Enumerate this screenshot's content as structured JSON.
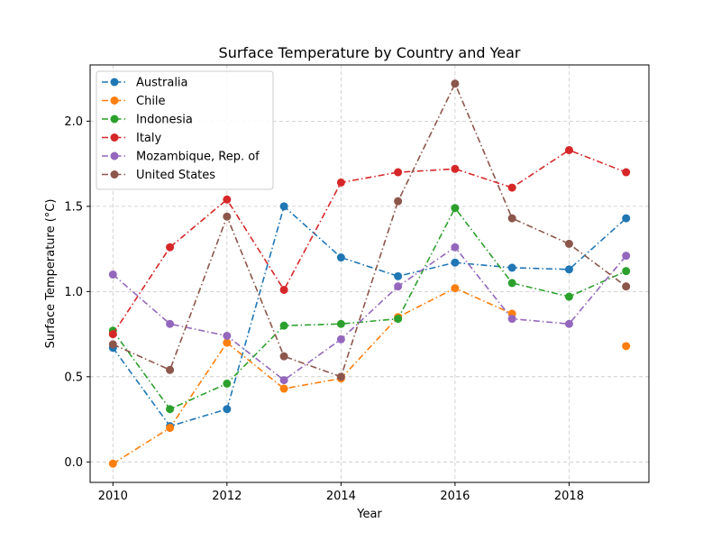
{
  "chart_data": {
    "type": "line",
    "title": "Surface Temperature by Country and Year",
    "xlabel": "Year",
    "ylabel": "Surface Temperature (°C)",
    "x": [
      2010,
      2011,
      2012,
      2013,
      2014,
      2015,
      2016,
      2017,
      2018,
      2019
    ],
    "xlim": [
      2009.6,
      2019.4
    ],
    "ylim": [
      -0.12,
      2.33
    ],
    "xticks": [
      2010,
      2012,
      2014,
      2016,
      2018
    ],
    "yticks": [
      0.0,
      0.5,
      1.0,
      1.5,
      2.0
    ],
    "xtick_labels": [
      "2010",
      "2012",
      "2014",
      "2016",
      "2018"
    ],
    "ytick_labels": [
      "0.0",
      "0.5",
      "1.0",
      "1.5",
      "2.0"
    ],
    "grid": true,
    "legend_position": "top-left",
    "series": [
      {
        "name": "Australia",
        "color": "#1f77b4",
        "values": [
          0.67,
          0.21,
          0.31,
          1.5,
          1.2,
          1.09,
          1.17,
          1.14,
          1.13,
          1.43
        ]
      },
      {
        "name": "Chile",
        "color": "#ff7f0e",
        "values": [
          -0.01,
          0.2,
          0.7,
          0.43,
          0.49,
          0.85,
          1.02,
          0.87,
          null,
          0.68
        ]
      },
      {
        "name": "Indonesia",
        "color": "#2ca02c",
        "values": [
          0.77,
          0.31,
          0.46,
          0.8,
          0.81,
          0.84,
          1.49,
          1.05,
          0.97,
          1.12
        ]
      },
      {
        "name": "Italy",
        "color": "#d62728",
        "values": [
          0.75,
          1.26,
          1.54,
          1.01,
          1.64,
          1.7,
          1.72,
          1.61,
          1.83,
          1.7
        ]
      },
      {
        "name": "Mozambique, Rep. of",
        "color": "#9467bd",
        "values": [
          1.1,
          0.81,
          0.74,
          0.48,
          0.72,
          1.03,
          1.26,
          0.84,
          0.81,
          1.21
        ]
      },
      {
        "name": "United States",
        "color": "#8c564b",
        "values": [
          0.69,
          0.54,
          1.44,
          0.62,
          0.5,
          1.53,
          2.22,
          1.43,
          1.28,
          1.03
        ]
      }
    ]
  }
}
